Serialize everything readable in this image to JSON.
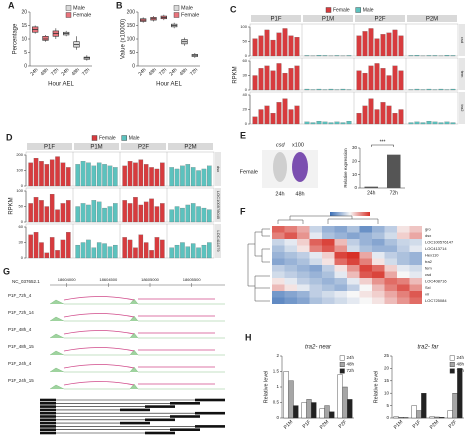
{
  "panels": {
    "A": {
      "label": "A",
      "type": "box",
      "ylabel": "Percentage",
      "xlabel": "Hour AEL",
      "ylim": [
        0,
        20
      ],
      "yticks": [
        0,
        5,
        10,
        15,
        20
      ],
      "series": [
        {
          "name": "Female",
          "color": "#e8747c",
          "categories": [
            "24h",
            "48h",
            "72h"
          ],
          "boxes": [
            [
              12,
              12.5,
              13.5,
              14.5,
              15
            ],
            [
              9,
              9.5,
              10,
              11,
              11.5
            ],
            [
              10,
              11,
              12,
              13,
              14
            ]
          ]
        },
        {
          "name": "Male",
          "color": "#d9d9d9",
          "categories": [
            "24h",
            "48h",
            "72h"
          ],
          "boxes": [
            [
              11,
              11.5,
              12,
              12.5,
              13
            ],
            [
              6,
              7,
              8,
              9,
              11
            ],
            [
              2,
              2.5,
              3,
              3.3,
              4
            ]
          ]
        }
      ]
    },
    "B": {
      "label": "B",
      "type": "box",
      "ylabel": "Value (x10000)",
      "xlabel": "Hour AEL",
      "ylim": [
        0,
        200
      ],
      "yticks": [
        0,
        50,
        100,
        150,
        200
      ],
      "series": [
        {
          "name": "Female",
          "color": "#e8747c",
          "categories": [
            "24h",
            "48h",
            "72h"
          ],
          "boxes": [
            [
              160,
              165,
              170,
              175,
              180
            ],
            [
              165,
              170,
              175,
              180,
              185
            ],
            [
              170,
              175,
              180,
              185,
              190
            ]
          ]
        },
        {
          "name": "Male",
          "color": "#d9d9d9",
          "categories": [
            "24h",
            "48h",
            "72h"
          ],
          "boxes": [
            [
              140,
              145,
              150,
              155,
              160
            ],
            [
              75,
              82,
              90,
              98,
              105
            ],
            [
              30,
              35,
              40,
              43,
              48
            ]
          ]
        }
      ]
    },
    "C": {
      "label": "C",
      "ylabel": "RPKM",
      "legend": [
        {
          "name": "Female",
          "color": "#d73b3e"
        },
        {
          "name": "Male",
          "color": "#5cc2be"
        }
      ],
      "columns": [
        {
          "name": "P1F",
          "color": "#d73b3e"
        },
        {
          "name": "P1M",
          "color": "#5cc2be"
        },
        {
          "name": "P2F",
          "color": "#d73b3e"
        },
        {
          "name": "P2M",
          "color": "#5cc2be"
        }
      ],
      "rows": [
        {
          "name": "csd",
          "ylim": [
            0,
            100
          ],
          "yticks": [
            0,
            50,
            100
          ],
          "values": [
            [
              60,
              70,
              90,
              55,
              80,
              95,
              70,
              65
            ],
            [
              2,
              1,
              3,
              2,
              1,
              2,
              1,
              2
            ],
            [
              70,
              85,
              95,
              60,
              75,
              80,
              90,
              70
            ],
            [
              2,
              3,
              1,
              2,
              2,
              1,
              3,
              2
            ]
          ]
        },
        {
          "name": "fem",
          "ylim": [
            0,
            60
          ],
          "yticks": [
            0,
            30,
            60
          ],
          "values": [
            [
              30,
              45,
              50,
              40,
              55,
              35,
              45,
              50
            ],
            [
              2,
              1,
              2,
              1,
              2,
              1,
              2,
              1
            ],
            [
              40,
              35,
              50,
              55,
              45,
              30,
              50,
              40
            ],
            [
              1,
              2,
              1,
              2,
              1,
              2,
              1,
              2
            ]
          ]
        },
        {
          "name": "tra2",
          "ylim": [
            0,
            40
          ],
          "yticks": [
            0,
            20,
            40
          ],
          "values": [
            [
              10,
              20,
              25,
              15,
              30,
              35,
              20,
              25
            ],
            [
              3,
              2,
              4,
              3,
              2,
              3,
              2,
              4
            ],
            [
              15,
              25,
              35,
              20,
              30,
              25,
              15,
              20
            ],
            [
              2,
              3,
              2,
              4,
              3,
              2,
              3,
              2
            ]
          ]
        }
      ]
    },
    "D": {
      "label": "D",
      "ylabel": "RPKM",
      "legend": [
        {
          "name": "Female",
          "color": "#d73b3e"
        },
        {
          "name": "Male",
          "color": "#5cc2be"
        }
      ],
      "columns": [
        {
          "name": "P1F",
          "color": "#d73b3e"
        },
        {
          "name": "P1M",
          "color": "#5cc2be"
        },
        {
          "name": "P2F",
          "color": "#d73b3e"
        },
        {
          "name": "P2M",
          "color": "#5cc2be"
        }
      ],
      "rows": [
        {
          "name": "dsx",
          "ylim": [
            0,
            200
          ],
          "yticks": [
            0,
            100,
            200
          ],
          "values": [
            [
              150,
              180,
              160,
              140,
              170,
              190,
              150,
              120
            ],
            [
              140,
              160,
              150,
              130,
              150,
              140,
              130,
              120
            ],
            [
              130,
              160,
              150,
              170,
              140,
              120,
              110,
              150
            ],
            [
              120,
              110,
              130,
              140,
              120,
              100,
              110,
              130
            ]
          ]
        },
        {
          "name": "LOC100578045",
          "ylim": [
            0,
            100
          ],
          "yticks": [
            0,
            50,
            100
          ],
          "values": [
            [
              60,
              80,
              70,
              50,
              90,
              40,
              60,
              70
            ],
            [
              50,
              60,
              55,
              70,
              65,
              45,
              50,
              60
            ],
            [
              70,
              60,
              80,
              55,
              65,
              75,
              50,
              60
            ],
            [
              40,
              50,
              45,
              55,
              60,
              50,
              45,
              40
            ]
          ]
        },
        {
          "name": "LOC411079",
          "ylim": [
            0,
            60
          ],
          "yticks": [
            0,
            30,
            60
          ],
          "values": [
            [
              45,
              50,
              30,
              10,
              40,
              15,
              35,
              50
            ],
            [
              25,
              30,
              35,
              20,
              30,
              28,
              22,
              25
            ],
            [
              40,
              35,
              20,
              45,
              30,
              15,
              40,
              35
            ],
            [
              20,
              25,
              30,
              22,
              28,
              20,
              25,
              30
            ]
          ]
        }
      ]
    },
    "E": {
      "label": "E",
      "gene": "csd",
      "magnification": "x100",
      "sex": "Female",
      "image_times": [
        "24h",
        "48h"
      ],
      "chart": {
        "categories": [
          "24h",
          "72h"
        ],
        "values": [
          1,
          25
        ],
        "color": "#555555",
        "ylabel": "Relative expression",
        "ylim": [
          0,
          30
        ],
        "yticks": [
          0,
          10,
          20,
          30
        ],
        "annotation": "***"
      }
    },
    "F": {
      "label": "F",
      "colors": [
        "#3b6fb6",
        "#f7f7f7",
        "#d73027"
      ],
      "range": [
        -2,
        2
      ],
      "rows": [
        "gro",
        "dsx",
        "LOC100576147",
        "LOC413714",
        "Hex110",
        "tra2",
        "fem",
        "csd",
        "LOC408716",
        "Sxl",
        "vir",
        "LOC725084"
      ],
      "values": [
        [
          1.5,
          1.2,
          0.8,
          -0.5,
          -1,
          -1.2,
          -0.8,
          -1.5,
          -1,
          -0.6,
          0.2,
          0.5
        ],
        [
          1.2,
          1.6,
          1,
          -0.2,
          -0.8,
          -1,
          -1.2,
          -1,
          -0.8,
          -0.4,
          0.4,
          0.8
        ],
        [
          -0.5,
          -0.2,
          0.4,
          1.5,
          1.8,
          0.6,
          -0.6,
          -1,
          -1.2,
          -0.8,
          -0.5,
          -0.4
        ],
        [
          -0.8,
          -0.4,
          0.2,
          1.2,
          1.6,
          1,
          -0.4,
          -0.8,
          -1,
          -1,
          -0.6,
          -0.2
        ],
        [
          -1,
          -0.8,
          -0.6,
          -0.2,
          0.4,
          1.8,
          2,
          0.8,
          -0.2,
          -0.6,
          -0.8,
          -1
        ],
        [
          -1.2,
          -1,
          -0.8,
          -0.4,
          0.2,
          1.4,
          1.8,
          1.2,
          0.2,
          -0.4,
          -0.8,
          -1
        ],
        [
          -0.6,
          -0.8,
          -1,
          -1.2,
          -0.6,
          0.2,
          1,
          1.8,
          1.4,
          0.4,
          -0.2,
          -0.4
        ],
        [
          -0.4,
          -0.6,
          -0.8,
          -1,
          -0.8,
          -0.2,
          0.6,
          1.6,
          1.8,
          0.8,
          0,
          -0.2
        ],
        [
          0.2,
          -0.2,
          -0.6,
          -0.8,
          -1,
          -0.8,
          -0.2,
          0.4,
          1,
          1.4,
          1.2,
          0.6
        ],
        [
          0.6,
          0.2,
          -0.2,
          -0.6,
          -0.8,
          -1,
          -0.6,
          0,
          0.6,
          1.2,
          1.6,
          1
        ],
        [
          -1.4,
          -1.2,
          -1,
          -0.6,
          -0.4,
          -0.2,
          0,
          0.2,
          0.4,
          0.8,
          1.2,
          1.6
        ],
        [
          -1.6,
          -1.4,
          -1.2,
          -0.8,
          -0.6,
          -0.4,
          -0.2,
          0,
          0.2,
          0.6,
          1,
          1.4
        ]
      ]
    },
    "G": {
      "label": "G",
      "chrom": "NC_037652.1",
      "xlim": [
        18603800,
        18605900
      ],
      "xticks": [
        18604000,
        18604500,
        18605000,
        18605500
      ],
      "tracks": [
        "P1F_72h_4",
        "P1F_72h_14",
        "P1F_48h_4",
        "P1F_48h_15",
        "P1F_24h_4",
        "P1F_24h_15"
      ]
    },
    "H": {
      "label": "H",
      "series": [
        {
          "name": "24h",
          "color": "#ffffff"
        },
        {
          "name": "48h",
          "color": "#a6a6a6"
        },
        {
          "name": "72h",
          "color": "#222222"
        }
      ],
      "charts": [
        {
          "title": "tra2- near",
          "ylabel": "Relative level",
          "categories": [
            "P1M",
            "P1F",
            "P2M",
            "P2F"
          ],
          "ylim": [
            0,
            2
          ],
          "yticks": [
            0,
            0.5,
            1,
            1.5,
            2
          ],
          "values": [
            [
              1.5,
              0.5,
              0.3,
              1.4
            ],
            [
              1.2,
              0.6,
              0.4,
              1
            ],
            [
              0.4,
              0.5,
              0.2,
              0.6
            ]
          ]
        },
        {
          "title": "tra2- far",
          "ylabel": "Relative level",
          "categories": [
            "P1M",
            "P1F",
            "P2M",
            "P2F"
          ],
          "ylim": [
            0,
            25
          ],
          "yticks": [
            0,
            5,
            10,
            15,
            20,
            25
          ],
          "values": [
            [
              0.5,
              5,
              0.5,
              3
            ],
            [
              0.3,
              3,
              0.4,
              10
            ],
            [
              0.2,
              10,
              0.3,
              20
            ]
          ]
        }
      ]
    }
  }
}
